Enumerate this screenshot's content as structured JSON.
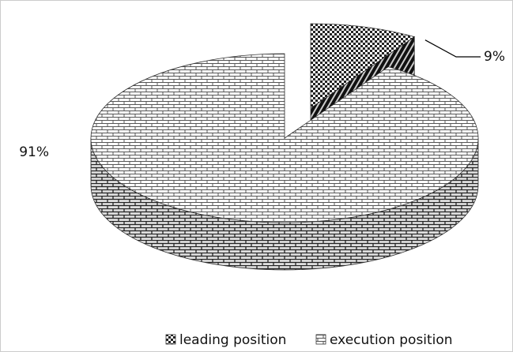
{
  "chart_data": {
    "type": "pie",
    "categories": [
      "leading position",
      "execution position"
    ],
    "values": [
      9,
      91
    ],
    "value_labels": [
      "9%",
      "91%"
    ],
    "legend": "bottom"
  }
}
